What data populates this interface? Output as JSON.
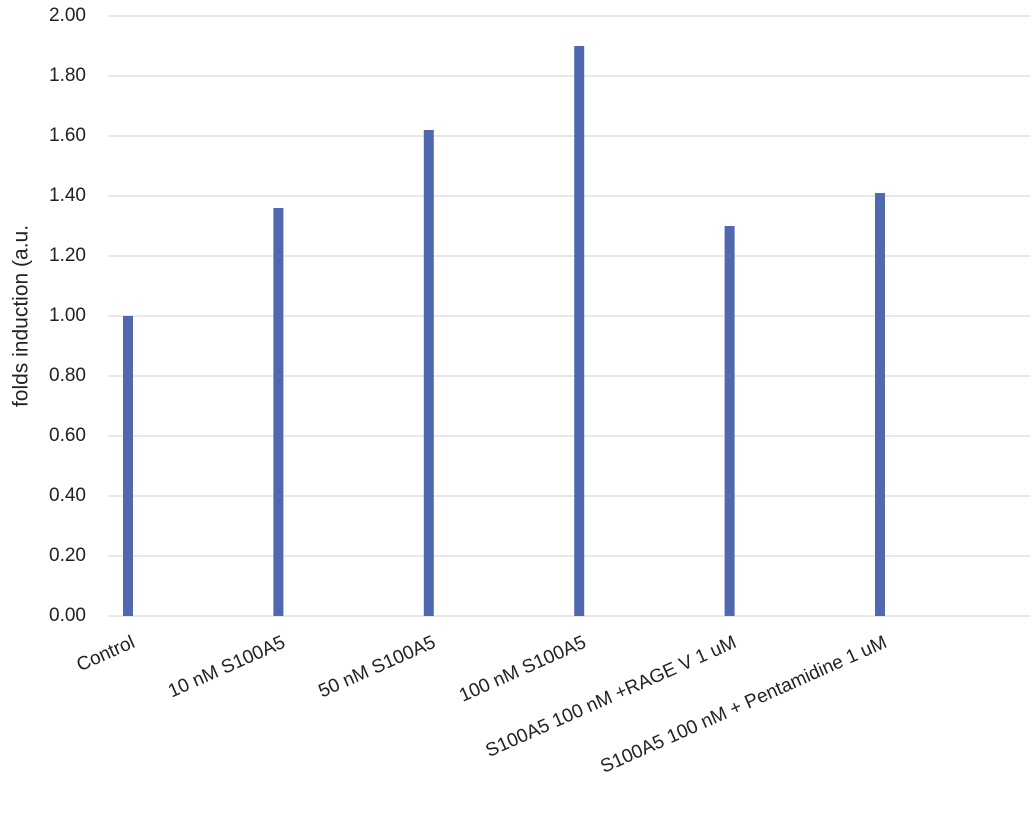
{
  "chart_data": {
    "type": "bar",
    "y_label": "folds induction (a.u.",
    "categories": [
      "Control",
      "10 nM S100A5",
      "50 nM S100A5",
      "100 nM S100A5",
      "S100A5 100 nM +RAGE V 1 uM",
      "S100A5 100 nM + Pentamidine 1 uM"
    ],
    "values": [
      1.0,
      1.36,
      1.62,
      1.9,
      1.3,
      1.41
    ],
    "color": "#5068b0",
    "ylim": [
      0,
      2
    ],
    "yticks": [
      {
        "value": 0,
        "label": "0.00"
      },
      {
        "value": 0.2,
        "label": "0.20"
      },
      {
        "value": 0.4,
        "label": "0.40"
      },
      {
        "value": 0.6,
        "label": "0.60"
      },
      {
        "value": 0.8,
        "label": "0.80"
      },
      {
        "value": 1,
        "label": "1.00"
      },
      {
        "value": 1.2,
        "label": "1.20"
      },
      {
        "value": 1.4,
        "label": "1.40"
      },
      {
        "value": 1.6,
        "label": "1.60"
      },
      {
        "value": 1.8,
        "label": "1.80"
      },
      {
        "value": 2,
        "label": "2.00"
      }
    ],
    "grid": true
  }
}
